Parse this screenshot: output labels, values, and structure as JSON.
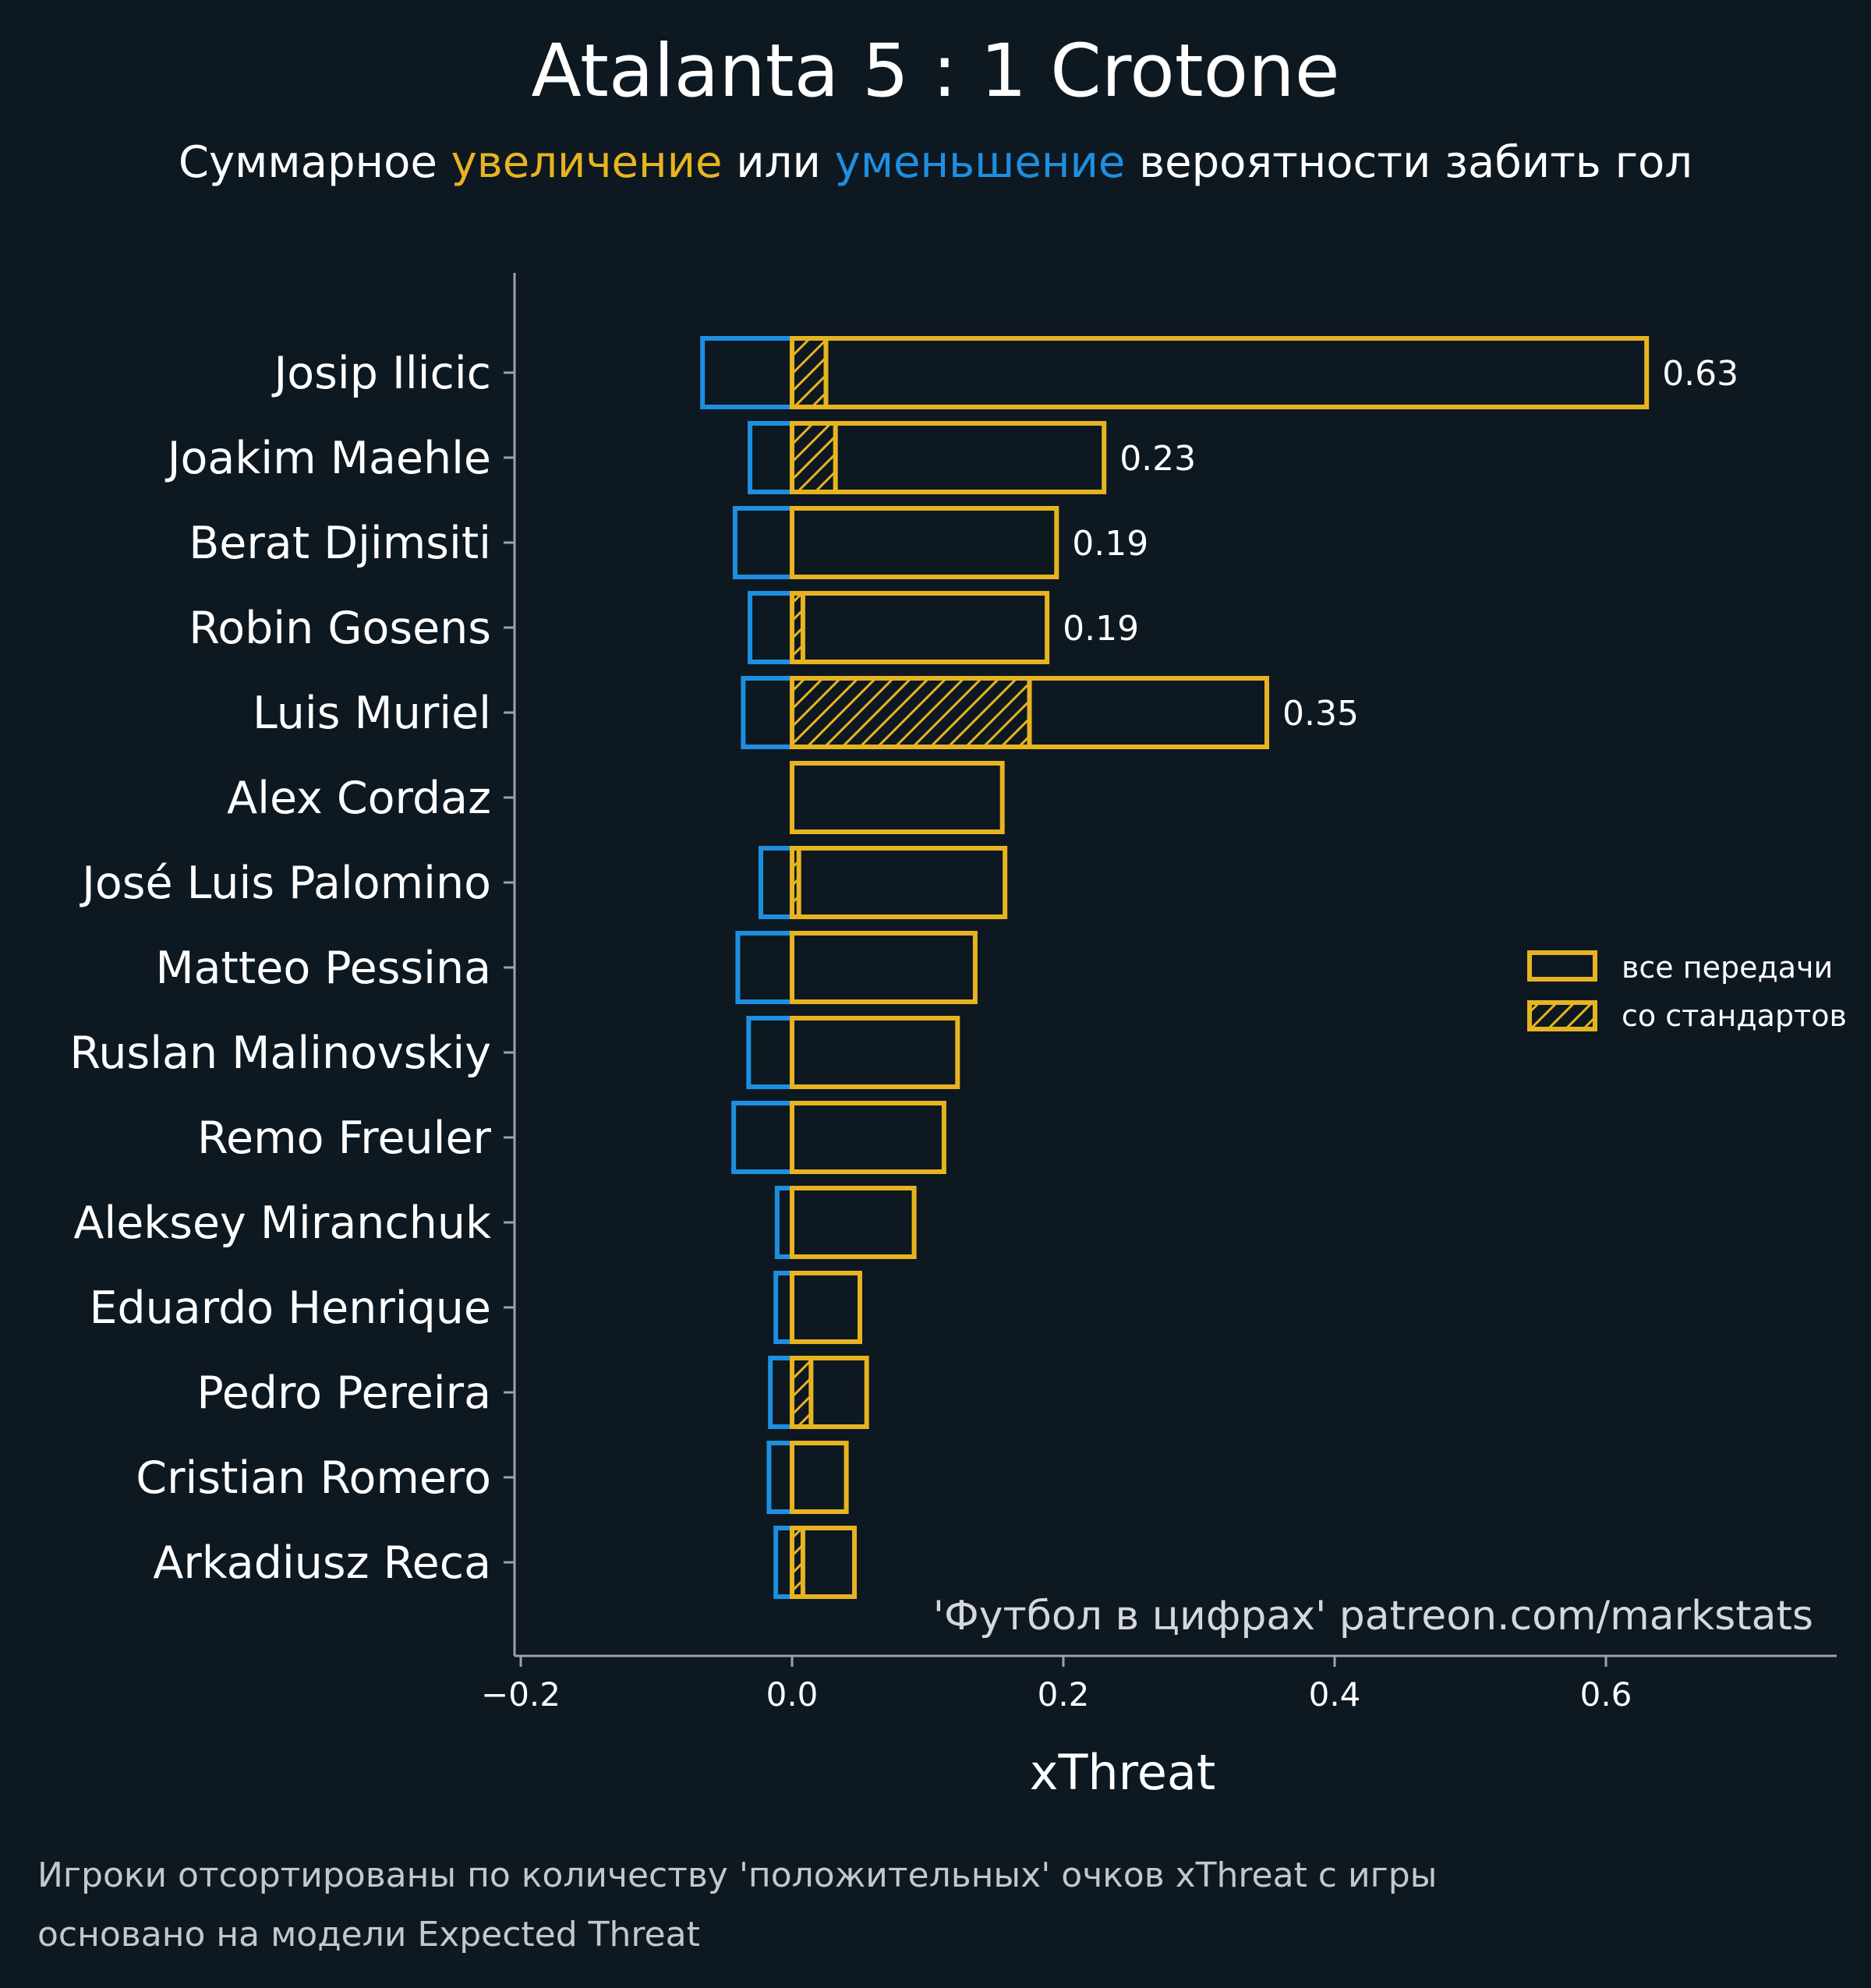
{
  "colors": {
    "background": "#0e1821",
    "increase": "#e7b421",
    "decrease": "#1e8fe0",
    "axis": "#9aa3ab",
    "text": "#ffffff"
  },
  "chart_data": {
    "type": "bar",
    "orientation": "horizontal",
    "title": "Atalanta 5 : 1 Crotone",
    "subtitle": {
      "prefix": "Суммарное",
      "increase_word": "увеличение",
      "connector": "или",
      "decrease_word": "уменьшение",
      "suffix": "вероятности забить гол"
    },
    "xlabel": "xThreat",
    "xlim": [
      -0.205,
      0.765
    ],
    "xticks": [
      -0.2,
      0.0,
      0.2,
      0.4,
      0.6
    ],
    "xtick_labels": [
      "−0.2",
      "0.0",
      "0.2",
      "0.4",
      "0.6"
    ],
    "legend": {
      "position": "right",
      "entries": [
        "все передачи",
        "со стандартов"
      ]
    },
    "categories": [
      "Josip Ilicic",
      "Joakim Maehle",
      "Berat Djimsiti",
      "Robin Gosens",
      "Luis Muriel",
      "Alex Cordaz",
      "José Luis Palomino",
      "Matteo Pessina",
      "Ruslan Malinovskiy",
      "Remo Freuler",
      "Aleksey Miranchuk",
      "Eduardo Henrique",
      "Pedro Pereira",
      "Cristian Romero",
      "Arkadiusz Reca"
    ],
    "series": [
      {
        "name": "положительные (все передачи)",
        "values": [
          0.63,
          0.23,
          0.195,
          0.188,
          0.35,
          0.155,
          0.157,
          0.135,
          0.122,
          0.112,
          0.09,
          0.05,
          0.055,
          0.04,
          0.046
        ]
      },
      {
        "name": "отрицательные (все передачи)",
        "values": [
          -0.066,
          -0.031,
          -0.042,
          -0.031,
          -0.036,
          0.0,
          -0.023,
          -0.04,
          -0.032,
          -0.043,
          -0.011,
          -0.012,
          -0.016,
          -0.017,
          -0.012
        ]
      },
      {
        "name": "со стандартов",
        "values": [
          0.025,
          0.032,
          0.0,
          0.008,
          0.175,
          0.0,
          0.005,
          0.0,
          0.0,
          0.0,
          0.0,
          0.0,
          0.014,
          0.0,
          0.008
        ]
      }
    ],
    "value_labels": [
      "0.63",
      "0.23",
      "0.19",
      "0.19",
      "0.35",
      "",
      "",
      "",
      "",
      "",
      "",
      "",
      "",
      "",
      ""
    ],
    "watermark": "'Футбол в цифрах' patreon.com/markstats"
  },
  "footnotes": [
    "Игроки отсортированы по количеству 'положительных' очков xThreat с игры",
    "основано на модели Expected Threat"
  ]
}
